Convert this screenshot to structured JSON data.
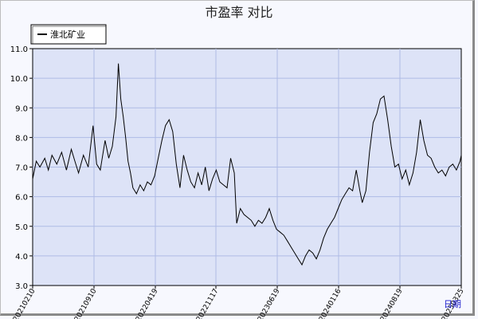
{
  "chart_data": {
    "type": "line",
    "title": "市盈率  对比",
    "xlabel": "日期",
    "ylabel": "",
    "ylim": [
      3.0,
      11.0
    ],
    "yticks": [
      "3.0",
      "4.0",
      "5.0",
      "6.0",
      "7.0",
      "8.0",
      "9.0",
      "10.0",
      "11.0"
    ],
    "xticks": [
      "20210210",
      "20210910",
      "20220419",
      "20221117",
      "20230619",
      "20240116",
      "20240819",
      "20250325"
    ],
    "grid": true,
    "legend_position": "top-left",
    "series": [
      {
        "name": "淮北矿业",
        "color": "#000000",
        "points": [
          [
            0,
            6.6
          ],
          [
            0.3,
            7.2
          ],
          [
            0.6,
            7.0
          ],
          [
            1,
            7.3
          ],
          [
            1.3,
            6.9
          ],
          [
            1.6,
            7.4
          ],
          [
            2,
            7.1
          ],
          [
            2.4,
            7.5
          ],
          [
            2.8,
            6.9
          ],
          [
            3.2,
            7.6
          ],
          [
            3.5,
            7.2
          ],
          [
            3.8,
            6.8
          ],
          [
            4.2,
            7.4
          ],
          [
            4.6,
            7.0
          ],
          [
            5,
            8.4
          ],
          [
            5.3,
            7.1
          ],
          [
            5.6,
            6.9
          ],
          [
            6,
            7.9
          ],
          [
            6.3,
            7.3
          ],
          [
            6.6,
            7.7
          ],
          [
            6.9,
            8.7
          ],
          [
            7.1,
            10.5
          ],
          [
            7.3,
            9.3
          ],
          [
            7.5,
            8.7
          ],
          [
            7.7,
            8.0
          ],
          [
            7.9,
            7.2
          ],
          [
            8.1,
            6.8
          ],
          [
            8.3,
            6.3
          ],
          [
            8.6,
            6.1
          ],
          [
            8.9,
            6.4
          ],
          [
            9.2,
            6.2
          ],
          [
            9.5,
            6.5
          ],
          [
            9.8,
            6.4
          ],
          [
            10.1,
            6.7
          ],
          [
            10.4,
            7.3
          ],
          [
            10.7,
            7.9
          ],
          [
            11,
            8.4
          ],
          [
            11.3,
            8.6
          ],
          [
            11.6,
            8.2
          ],
          [
            11.9,
            7.1
          ],
          [
            12.2,
            6.3
          ],
          [
            12.5,
            7.4
          ],
          [
            12.8,
            6.9
          ],
          [
            13.1,
            6.5
          ],
          [
            13.4,
            6.3
          ],
          [
            13.7,
            6.8
          ],
          [
            14,
            6.4
          ],
          [
            14.3,
            7.0
          ],
          [
            14.6,
            6.2
          ],
          [
            14.9,
            6.6
          ],
          [
            15.2,
            6.9
          ],
          [
            15.5,
            6.5
          ],
          [
            15.8,
            6.4
          ],
          [
            16.1,
            6.3
          ],
          [
            16.4,
            7.3
          ],
          [
            16.7,
            6.8
          ],
          [
            16.9,
            5.1
          ],
          [
            17.2,
            5.6
          ],
          [
            17.5,
            5.4
          ],
          [
            17.8,
            5.3
          ],
          [
            18.1,
            5.2
          ],
          [
            18.4,
            5.0
          ],
          [
            18.7,
            5.2
          ],
          [
            19,
            5.1
          ],
          [
            19.3,
            5.3
          ],
          [
            19.6,
            5.6
          ],
          [
            19.9,
            5.2
          ],
          [
            20.2,
            4.9
          ],
          [
            20.5,
            4.8
          ],
          [
            20.8,
            4.7
          ],
          [
            21.1,
            4.5
          ],
          [
            21.4,
            4.3
          ],
          [
            21.7,
            4.1
          ],
          [
            22,
            3.9
          ],
          [
            22.3,
            3.7
          ],
          [
            22.6,
            4.0
          ],
          [
            22.9,
            4.2
          ],
          [
            23.2,
            4.1
          ],
          [
            23.5,
            3.9
          ],
          [
            23.8,
            4.2
          ],
          [
            24.1,
            4.6
          ],
          [
            24.4,
            4.9
          ],
          [
            24.7,
            5.1
          ],
          [
            25,
            5.3
          ],
          [
            25.3,
            5.6
          ],
          [
            25.6,
            5.9
          ],
          [
            25.9,
            6.1
          ],
          [
            26.2,
            6.3
          ],
          [
            26.5,
            6.2
          ],
          [
            26.8,
            6.9
          ],
          [
            27.1,
            6.2
          ],
          [
            27.3,
            5.8
          ],
          [
            27.6,
            6.2
          ],
          [
            27.9,
            7.5
          ],
          [
            28.2,
            8.5
          ],
          [
            28.5,
            8.8
          ],
          [
            28.8,
            9.3
          ],
          [
            29.1,
            9.4
          ],
          [
            29.4,
            8.6
          ],
          [
            29.7,
            7.7
          ],
          [
            30,
            7.0
          ],
          [
            30.3,
            7.1
          ],
          [
            30.6,
            6.6
          ],
          [
            30.9,
            6.9
          ],
          [
            31.2,
            6.4
          ],
          [
            31.5,
            6.8
          ],
          [
            31.8,
            7.5
          ],
          [
            32.1,
            8.6
          ],
          [
            32.4,
            7.9
          ],
          [
            32.7,
            7.4
          ],
          [
            33,
            7.3
          ],
          [
            33.3,
            7.0
          ],
          [
            33.6,
            6.8
          ],
          [
            33.9,
            6.9
          ],
          [
            34.2,
            6.7
          ],
          [
            34.5,
            7.0
          ],
          [
            34.8,
            7.1
          ],
          [
            35.1,
            6.9
          ],
          [
            35.4,
            7.2
          ],
          [
            35.5,
            7.4
          ]
        ]
      }
    ]
  }
}
